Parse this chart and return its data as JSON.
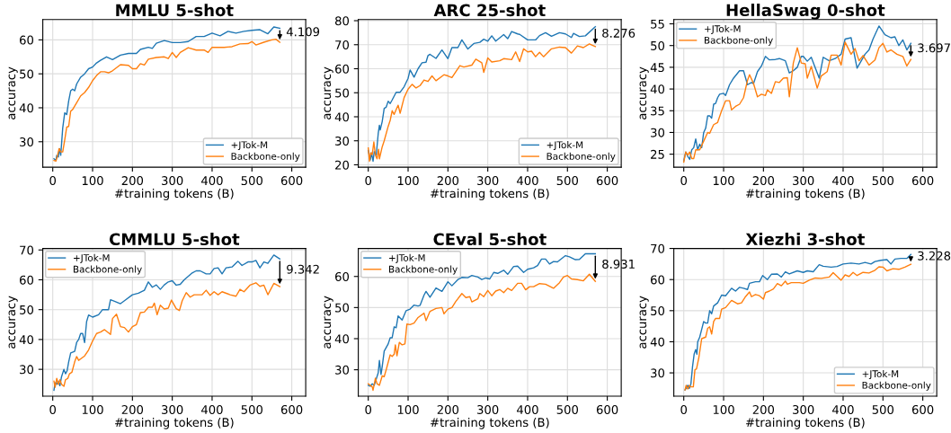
{
  "chart_data": [
    {
      "type": "line",
      "title": "MMLU 5-shot",
      "xlabel": "#training tokens (B)",
      "ylabel": "accuracy",
      "xlim": [
        -25,
        635
      ],
      "xticks": [
        0,
        100,
        200,
        300,
        400,
        500,
        600
      ],
      "ylim": [
        22.5,
        66
      ],
      "yticks": [
        30,
        40,
        50,
        60
      ],
      "grid": true,
      "legend": "bottom right",
      "annotations": [
        "4.109"
      ],
      "series": [
        {
          "name": "+JTok-M",
          "color": "#1f77b4",
          "x": [
            3,
            8,
            10,
            14,
            17,
            20,
            25,
            30,
            35,
            40,
            45,
            50,
            55,
            60,
            70,
            80,
            90,
            100,
            110,
            120,
            135,
            150,
            170,
            190,
            210,
            220,
            240,
            250,
            260,
            280,
            300,
            320,
            340,
            360,
            380,
            400,
            420,
            440,
            460,
            480,
            500,
            520,
            540,
            555,
            570
          ],
          "values": [
            25,
            24.5,
            26,
            25.5,
            28,
            26,
            34,
            38.5,
            38,
            42,
            45,
            45.5,
            45,
            47,
            49,
            50,
            51.5,
            52,
            53.2,
            54,
            55,
            54.2,
            55.5,
            56,
            56,
            57.2,
            57.8,
            57.5,
            59,
            59.8,
            59.2,
            59.2,
            59.5,
            61,
            61,
            62,
            61.2,
            62.5,
            62,
            62.5,
            62.8,
            63,
            61.8,
            63.8,
            63.4
          ]
        },
        {
          "name": "Backbone-only",
          "color": "#ff7f0e",
          "x": [
            3,
            8,
            12,
            16,
            20,
            25,
            30,
            35,
            40,
            45,
            50,
            60,
            70,
            80,
            90,
            100,
            110,
            120,
            130,
            140,
            150,
            170,
            190,
            200,
            210,
            220,
            230,
            240,
            260,
            280,
            290,
            300,
            310,
            320,
            340,
            360,
            380,
            390,
            400,
            430,
            450,
            470,
            490,
            500,
            510,
            530,
            550,
            560,
            570
          ],
          "values": [
            24.5,
            24.3,
            26,
            28,
            27,
            27,
            30.5,
            34.3,
            34.5,
            39,
            39.5,
            41.5,
            43.5,
            44.5,
            46,
            48,
            49.5,
            50.6,
            50.6,
            50.3,
            50.9,
            52.7,
            52.5,
            51.5,
            51.5,
            53,
            52.6,
            54.3,
            54.8,
            55,
            54.5,
            56.3,
            54.8,
            56.3,
            57.7,
            57,
            57,
            56.3,
            57.8,
            57.8,
            58,
            58.8,
            58.9,
            59.5,
            58.5,
            59.3,
            60,
            60.2,
            59.3
          ]
        }
      ]
    },
    {
      "type": "line",
      "title": "ARC 25-shot",
      "xlabel": "#training tokens (B)",
      "ylabel": "accuracy",
      "xlim": [
        -25,
        635
      ],
      "xticks": [
        0,
        100,
        200,
        300,
        400,
        500,
        600
      ],
      "ylim": [
        19,
        80.5
      ],
      "yticks": [
        20,
        30,
        40,
        50,
        60,
        70,
        80
      ],
      "grid": true,
      "legend": "bottom right",
      "annotations": [
        "8.276"
      ],
      "series": [
        {
          "name": "+JTok-M",
          "color": "#1f77b4",
          "x": [
            0,
            5,
            8,
            12,
            15,
            20,
            25,
            28,
            30,
            35,
            40,
            45,
            50,
            55,
            60,
            70,
            80,
            90,
            100,
            105,
            115,
            125,
            135,
            145,
            150,
            155,
            170,
            185,
            200,
            210,
            225,
            235,
            250,
            265,
            280,
            290,
            300,
            310,
            320,
            340,
            350,
            360,
            375,
            380,
            400,
            420,
            430,
            445,
            460,
            480,
            495,
            510,
            515,
            530,
            545,
            570
          ],
          "values": [
            26,
            22,
            25,
            21.5,
            25.5,
            24,
            33,
            36.5,
            34.5,
            38,
            43.5,
            44,
            46.5,
            45.5,
            47,
            50.2,
            50.2,
            52.5,
            56,
            59.5,
            56.5,
            60,
            62.5,
            62.7,
            65.5,
            66,
            64.3,
            67.8,
            64.2,
            68.8,
            68.8,
            72,
            68.2,
            70.5,
            71,
            72.3,
            71.5,
            73.7,
            71.5,
            74.2,
            72.5,
            75.5,
            74.5,
            74.3,
            72,
            72,
            73.8,
            75,
            73.5,
            75,
            74.5,
            73,
            74.7,
            73.4,
            73.7,
            77.5
          ]
        },
        {
          "name": "Backbone-only",
          "color": "#ff7f0e",
          "x": [
            0,
            3,
            6,
            10,
            14,
            18,
            22,
            26,
            28,
            35,
            40,
            50,
            55,
            60,
            65,
            70,
            75,
            80,
            90,
            100,
            110,
            120,
            130,
            140,
            150,
            160,
            170,
            190,
            200,
            210,
            230,
            240,
            260,
            270,
            285,
            290,
            300,
            310,
            330,
            340,
            360,
            370,
            380,
            390,
            400,
            410,
            420,
            430,
            440,
            460,
            480,
            495,
            510,
            525,
            540,
            555,
            570
          ],
          "values": [
            27,
            21.5,
            25,
            24.3,
            29.5,
            24,
            22.5,
            26.5,
            22.5,
            27.5,
            30,
            36,
            38.5,
            42.5,
            41,
            43,
            44.8,
            41.5,
            48,
            51.5,
            53.5,
            52,
            53,
            55.3,
            54.7,
            57,
            55,
            57.5,
            57,
            56.3,
            61.3,
            60.7,
            61.5,
            64,
            62.5,
            58.5,
            64.5,
            62.8,
            63.3,
            64.2,
            63.8,
            67,
            63,
            68.3,
            67,
            67.3,
            65,
            66.8,
            65,
            68.3,
            69,
            68.8,
            66.5,
            69.5,
            68.8,
            70.3,
            69.2
          ]
        }
      ]
    },
    {
      "type": "line",
      "title": "HellaSwag 0-shot",
      "xlabel": "#training tokens (B)",
      "ylabel": "accuracy",
      "xlim": [
        -25,
        635
      ],
      "xticks": [
        0,
        100,
        200,
        300,
        400,
        500,
        600
      ],
      "ylim": [
        22,
        56
      ],
      "yticks": [
        25,
        30,
        35,
        40,
        45,
        50,
        55
      ],
      "grid": true,
      "legend": "top left",
      "annotations": [
        "3.697"
      ],
      "series": [
        {
          "name": "+JTok-M",
          "color": "#1f77b4",
          "x": [
            0,
            5,
            10,
            15,
            20,
            25,
            30,
            35,
            40,
            45,
            50,
            55,
            60,
            65,
            70,
            75,
            80,
            85,
            90,
            100,
            105,
            115,
            125,
            140,
            150,
            160,
            170,
            175,
            185,
            195,
            205,
            215,
            230,
            240,
            255,
            265,
            275,
            285,
            295,
            300,
            310,
            320,
            340,
            350,
            365,
            380,
            395,
            405,
            420,
            435,
            445,
            455,
            465,
            475,
            490,
            505,
            520,
            530,
            540,
            550,
            560,
            570
          ],
          "values": [
            23.5,
            25.5,
            24.5,
            23.8,
            26,
            26.5,
            28.5,
            26,
            27.3,
            26.5,
            30,
            31,
            33.8,
            33.8,
            33.3,
            36.5,
            36.7,
            38,
            38.8,
            39,
            38.5,
            41,
            42.5,
            44.2,
            44.2,
            41,
            41.5,
            41.2,
            44,
            45.3,
            47.5,
            46.7,
            46.8,
            47,
            46.5,
            43.7,
            44.2,
            45,
            47.5,
            47.5,
            46.4,
            47.3,
            42.5,
            47.3,
            46.5,
            47,
            48,
            51.5,
            51.8,
            44.8,
            46.4,
            48,
            49,
            51.5,
            54.5,
            52.5,
            51.8,
            52,
            50,
            51.3,
            49,
            50.5
          ]
        },
        {
          "name": "Backbone-only",
          "color": "#ff7f0e",
          "x": [
            0,
            5,
            10,
            15,
            20,
            25,
            30,
            40,
            50,
            60,
            65,
            70,
            75,
            85,
            95,
            105,
            115,
            120,
            130,
            140,
            150,
            160,
            165,
            175,
            185,
            195,
            205,
            210,
            220,
            230,
            240,
            250,
            260,
            265,
            275,
            285,
            295,
            305,
            310,
            320,
            335,
            345,
            360,
            370,
            385,
            395,
            405,
            420,
            430,
            440,
            450,
            465,
            480,
            490,
            500,
            510,
            520,
            535,
            550,
            560,
            570
          ],
          "values": [
            23.2,
            25.5,
            24.8,
            25.5,
            24,
            24,
            26,
            26,
            28,
            30,
            29.8,
            30.8,
            31.8,
            32.3,
            35,
            37.3,
            37.3,
            35.2,
            36,
            36.5,
            38,
            42,
            43.3,
            41.3,
            38.2,
            38.8,
            38.5,
            39.8,
            39,
            41.7,
            41.5,
            42.5,
            42.6,
            38.2,
            46,
            49.5,
            46,
            45.8,
            42.5,
            45.2,
            40.2,
            43,
            44,
            47.8,
            47.8,
            45.5,
            50.8,
            48,
            49.3,
            46.5,
            47.7,
            45.5,
            46.7,
            49.5,
            50.5,
            48.5,
            49,
            48,
            47.5,
            45.3,
            46.8
          ]
        }
      ]
    },
    {
      "type": "line",
      "title": "CMMLU 5-shot",
      "xlabel": "#training tokens (B)",
      "ylabel": "accuracy",
      "xlim": [
        -25,
        635
      ],
      "xticks": [
        0,
        100,
        200,
        300,
        400,
        500,
        600
      ],
      "ylim": [
        21,
        70.5
      ],
      "yticks": [
        30,
        40,
        50,
        60,
        70
      ],
      "grid": true,
      "legend": "top left",
      "annotations": [
        "9.342"
      ],
      "series": [
        {
          "name": "+JTok-M",
          "color": "#1f77b4",
          "x": [
            3,
            6,
            10,
            14,
            18,
            22,
            28,
            32,
            36,
            40,
            45,
            55,
            60,
            65,
            70,
            75,
            80,
            85,
            90,
            100,
            115,
            125,
            140,
            145,
            155,
            170,
            180,
            200,
            215,
            230,
            240,
            250,
            260,
            270,
            280,
            290,
            300,
            310,
            320,
            330,
            350,
            360,
            370,
            385,
            395,
            405,
            415,
            425,
            435,
            450,
            465,
            475,
            490,
            500,
            510,
            520,
            530,
            540,
            555,
            570
          ],
          "values": [
            23,
            25.5,
            25,
            26,
            24.5,
            27.5,
            30,
            28.5,
            29.5,
            32.5,
            35.5,
            36,
            39,
            40,
            42,
            42,
            39,
            46,
            48.2,
            47.5,
            48.3,
            50,
            50,
            53.3,
            52.8,
            52,
            53,
            55,
            55.5,
            56.5,
            59.3,
            57.5,
            58.3,
            56.8,
            58.3,
            59.3,
            59.7,
            58.2,
            58.5,
            60,
            62.3,
            63,
            63,
            62,
            62,
            63.8,
            64,
            62,
            64,
            64.3,
            66.2,
            64.8,
            66,
            66,
            66.5,
            64,
            66,
            65.5,
            68.3,
            67
          ]
        },
        {
          "name": "Backbone-only",
          "color": "#ff7f0e",
          "x": [
            3,
            6,
            10,
            14,
            18,
            22,
            28,
            32,
            38,
            42,
            48,
            55,
            60,
            65,
            70,
            80,
            90,
            100,
            110,
            120,
            130,
            145,
            150,
            160,
            170,
            180,
            190,
            200,
            210,
            220,
            230,
            240,
            250,
            255,
            262,
            270,
            280,
            290,
            298,
            310,
            318,
            325,
            335,
            345,
            355,
            375,
            385,
            395,
            405,
            415,
            425,
            445,
            460,
            470,
            480,
            495,
            510,
            520,
            530,
            540,
            555,
            570
          ],
          "values": [
            26,
            24,
            27,
            25,
            26.5,
            25,
            24.3,
            26.5,
            27,
            28.5,
            29,
            32.5,
            34.3,
            33,
            33.5,
            34.5,
            36.5,
            39.5,
            42,
            42.5,
            43.3,
            41.7,
            47,
            48.5,
            44.3,
            44,
            42.5,
            44.3,
            45,
            49,
            49.2,
            50.8,
            50.8,
            52.2,
            48.3,
            51.5,
            50.2,
            50.5,
            53.2,
            50.3,
            49.7,
            53,
            55.7,
            54.2,
            55,
            55,
            56.5,
            54.8,
            56,
            55,
            56,
            55,
            54.5,
            56.8,
            56,
            58.2,
            59,
            57.8,
            58.2,
            55,
            58.8,
            57.7
          ]
        }
      ]
    },
    {
      "type": "line",
      "title": "CEval 5-shot",
      "xlabel": "#training tokens (B)",
      "ylabel": "accuracy",
      "xlim": [
        -25,
        635
      ],
      "xticks": [
        0,
        100,
        200,
        300,
        400,
        500,
        600
      ],
      "ylim": [
        21.5,
        69
      ],
      "yticks": [
        30,
        40,
        50,
        60
      ],
      "grid": true,
      "legend": "top left",
      "annotations": [
        "8.931"
      ],
      "series": [
        {
          "name": "+JTok-M",
          "color": "#1f77b4",
          "x": [
            0,
            5,
            10,
            15,
            20,
            25,
            28,
            32,
            35,
            40,
            50,
            55,
            60,
            65,
            70,
            75,
            85,
            95,
            105,
            115,
            125,
            130,
            140,
            145,
            155,
            170,
            185,
            200,
            210,
            225,
            235,
            250,
            260,
            275,
            285,
            295,
            305,
            315,
            325,
            340,
            350,
            365,
            375,
            390,
            400,
            415,
            425,
            435,
            445,
            455,
            465,
            475,
            495,
            505,
            520,
            530,
            545,
            570
          ],
          "values": [
            25,
            24.7,
            25.5,
            25,
            27,
            29,
            33,
            28.5,
            31,
            36,
            38.3,
            40.3,
            40.3,
            43.8,
            43.5,
            47.3,
            46,
            49,
            49.5,
            50.8,
            50.5,
            50.7,
            54,
            55.2,
            53.3,
            56.3,
            55.2,
            58.3,
            57,
            59,
            59.7,
            59.6,
            60.3,
            59.8,
            59,
            59.5,
            59.2,
            61.3,
            61,
            62,
            60.7,
            63.2,
            63.3,
            61.3,
            62.3,
            62.8,
            63.5,
            65.6,
            65.6,
            64,
            64.8,
            64.7,
            66.7,
            66.3,
            65.4,
            65.5,
            67.3,
            67.3
          ]
        },
        {
          "name": "Backbone-only",
          "color": "#ff7f0e",
          "x": [
            0,
            5,
            10,
            12,
            18,
            22,
            28,
            35,
            40,
            45,
            55,
            60,
            65,
            68,
            72,
            78,
            85,
            92,
            97,
            105,
            115,
            125,
            140,
            145,
            155,
            170,
            185,
            190,
            200,
            210,
            220,
            235,
            245,
            255,
            260,
            275,
            280,
            290,
            300,
            310,
            320,
            330,
            340,
            350,
            360,
            375,
            385,
            395,
            405,
            415,
            430,
            445,
            465,
            480,
            490,
            500,
            510,
            525,
            540,
            555,
            570
          ],
          "values": [
            25.5,
            25,
            24.5,
            23.4,
            27.3,
            25.5,
            25,
            28,
            27.8,
            30,
            34.8,
            34.3,
            35,
            38,
            34.5,
            38.8,
            38,
            38.3,
            44.7,
            44.5,
            45,
            46.8,
            48.2,
            45.8,
            48.8,
            49.7,
            50,
            48,
            49.5,
            50,
            52,
            54.5,
            53.2,
            53.5,
            51.8,
            52.8,
            54.5,
            53.5,
            55.5,
            53.8,
            55.3,
            55.8,
            54.8,
            56.2,
            55.5,
            57.8,
            57.8,
            55.7,
            56.7,
            56.7,
            57.7,
            57.5,
            56.2,
            58,
            59.8,
            60.3,
            59.2,
            59,
            58.6,
            60.7,
            58.4
          ]
        }
      ]
    },
    {
      "type": "line",
      "title": "Xiezhi 3-shot",
      "xlabel": "#training tokens (B)",
      "ylabel": "accuracy",
      "xlim": [
        -25,
        635
      ],
      "xticks": [
        0,
        100,
        200,
        300,
        400,
        500,
        600
      ],
      "ylim": [
        22.5,
        70
      ],
      "yticks": [
        30,
        40,
        50,
        60,
        70
      ],
      "grid": true,
      "legend": "bottom right",
      "annotations": [
        "3.228"
      ],
      "series": [
        {
          "name": "+JTok-M",
          "color": "#1f77b4",
          "x": [
            3,
            6,
            10,
            14,
            18,
            22,
            26,
            30,
            33,
            35,
            40,
            45,
            50,
            55,
            60,
            65,
            70,
            75,
            85,
            95,
            105,
            120,
            130,
            140,
            150,
            160,
            165,
            180,
            190,
            198,
            210,
            220,
            235,
            245,
            255,
            265,
            285,
            300,
            310,
            325,
            340,
            350,
            370,
            385,
            400,
            420,
            440,
            455,
            470,
            480,
            495,
            510,
            520,
            530,
            545,
            560,
            570
          ],
          "values": [
            24.5,
            25,
            26,
            25,
            26.5,
            32,
            36,
            37.5,
            36,
            40,
            41.5,
            44,
            46.5,
            46,
            46,
            50,
            49,
            51.5,
            52.5,
            55,
            54.8,
            57.2,
            56.3,
            57.5,
            57.2,
            56.8,
            58.8,
            59.3,
            59.3,
            61.3,
            60,
            61.7,
            61.8,
            60.8,
            62.5,
            61.8,
            62.8,
            62.3,
            62.8,
            62.5,
            64.8,
            64.3,
            64,
            64.2,
            65,
            65.3,
            65,
            65.5,
            65,
            65.8,
            66.2,
            66.4,
            65,
            66.6,
            66.8,
            66.8,
            68.1
          ]
        },
        {
          "name": "Backbone-only",
          "color": "#ff7f0e",
          "x": [
            3,
            6,
            10,
            14,
            18,
            24,
            28,
            32,
            38,
            45,
            55,
            60,
            65,
            70,
            75,
            80,
            90,
            95,
            105,
            120,
            135,
            145,
            155,
            165,
            170,
            180,
            190,
            200,
            205,
            215,
            225,
            235,
            245,
            255,
            260,
            270,
            290,
            300,
            315,
            330,
            345,
            365,
            375,
            395,
            405,
            415,
            425,
            435,
            450,
            465,
            480,
            490,
            500,
            510,
            525,
            540,
            555,
            570
          ],
          "values": [
            24.5,
            26,
            24.8,
            26,
            25.5,
            25.5,
            31,
            31.3,
            35,
            41,
            41.5,
            44.3,
            44.8,
            42.5,
            46.5,
            47.5,
            47.5,
            50.5,
            51,
            53.3,
            52.2,
            52.5,
            54.5,
            56,
            54.5,
            55.2,
            54.8,
            53.7,
            55.8,
            56.3,
            57,
            58.7,
            58,
            59.5,
            58.5,
            59,
            59,
            58.8,
            59.8,
            60.5,
            60.4,
            60.8,
            62.2,
            59.8,
            61.5,
            61,
            62.3,
            61.3,
            62.3,
            62.1,
            63,
            64.1,
            64,
            62.8,
            63.5,
            63.3,
            64,
            64.9
          ]
        }
      ]
    }
  ]
}
